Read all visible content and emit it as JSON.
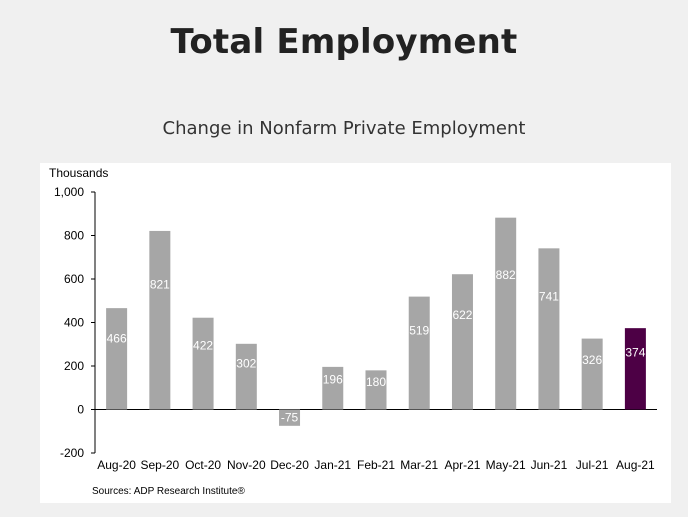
{
  "page": {
    "title": "Total Employment",
    "subtitle": "Change in Nonfarm Private Employment"
  },
  "chart_data": {
    "type": "bar",
    "ylabel": "Thousands",
    "source": "Sources: ADP Research Institute®",
    "categories": [
      "Aug-20",
      "Sep-20",
      "Oct-20",
      "Nov-20",
      "Dec-20",
      "Jan-21",
      "Feb-21",
      "Mar-21",
      "Apr-21",
      "May-21",
      "Jun-21",
      "Jul-21",
      "Aug-21"
    ],
    "values": [
      466,
      821,
      422,
      302,
      -75,
      196,
      180,
      519,
      622,
      882,
      741,
      326,
      374
    ],
    "ylim": [
      -200,
      1000
    ],
    "yticks": [
      -200,
      0,
      200,
      400,
      600,
      800,
      1000
    ],
    "ytick_labels": [
      "-200",
      "0",
      "200",
      "400",
      "600",
      "800",
      "1,000"
    ],
    "grid": false,
    "colors": {
      "bar": "#a6a6a6",
      "highlight": "#4d0045"
    },
    "highlight_index": 12
  }
}
